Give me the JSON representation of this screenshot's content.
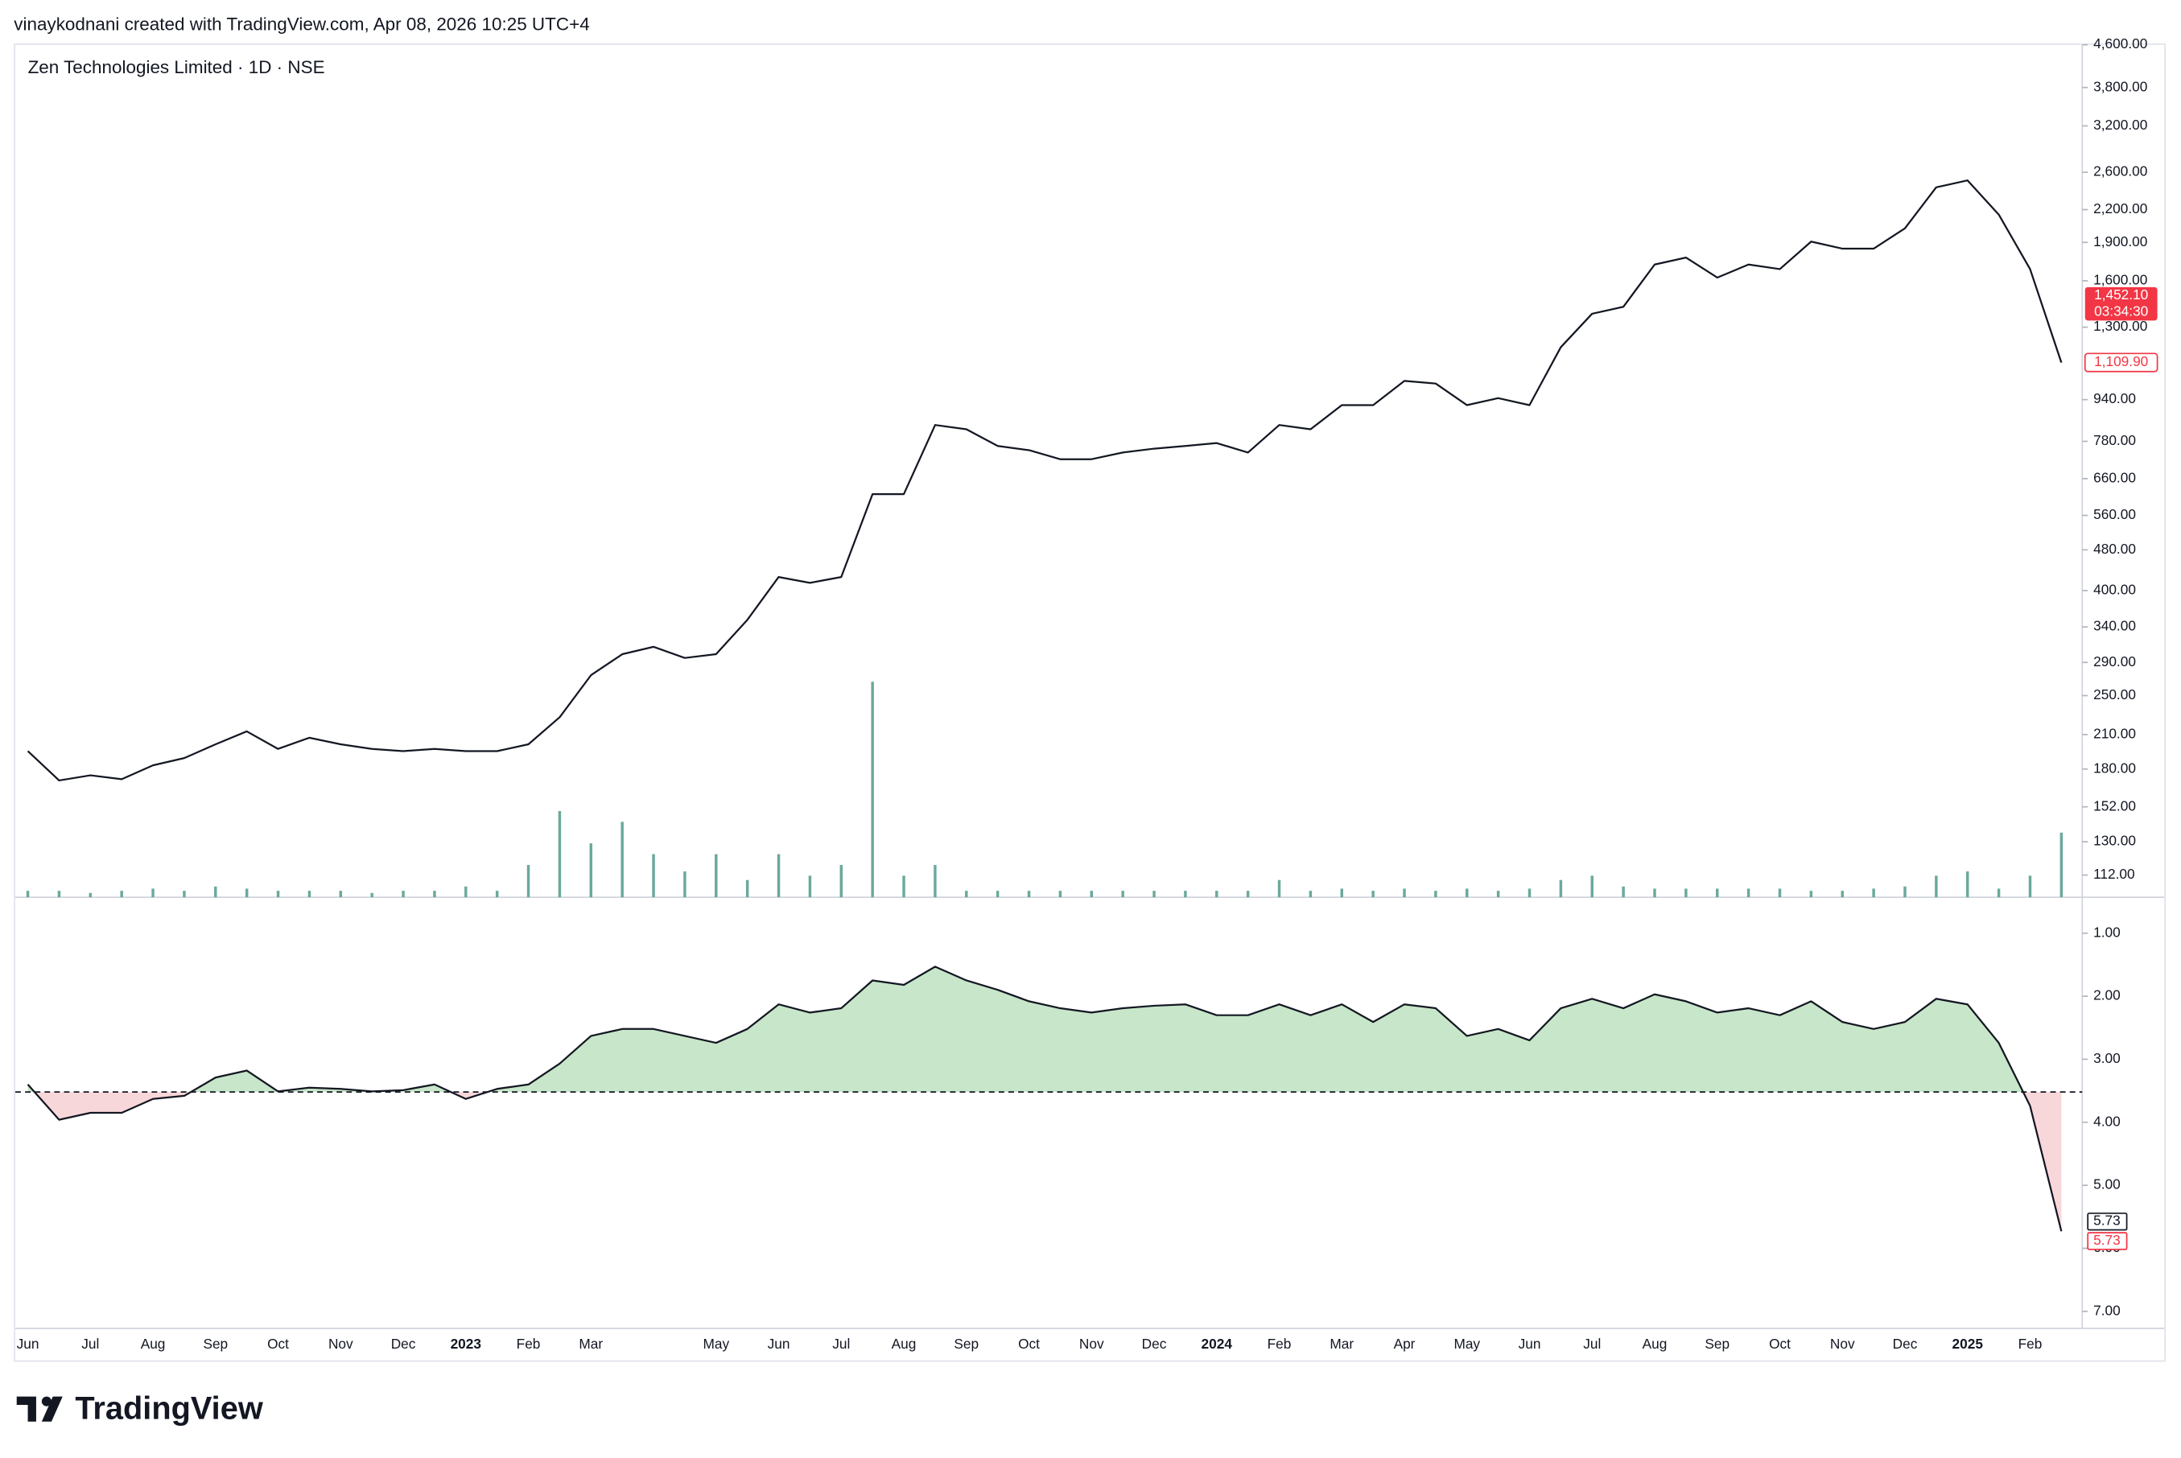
{
  "header": {
    "attribution": "vinaykodnani created with TradingView.com, Apr 08, 2026 10:25 UTC+4"
  },
  "footer": {
    "logo_text": "TradingView"
  },
  "chart_data": [
    {
      "type": "line",
      "title": "Zen Technologies Limited · 1D · NSE",
      "categories": [
        "Jun",
        null,
        "Jul",
        null,
        "Aug",
        null,
        "Sep",
        null,
        "Oct",
        null,
        "Nov",
        null,
        "Dec",
        null,
        "2023",
        null,
        "Feb",
        null,
        "Mar",
        null,
        null,
        null,
        "May",
        null,
        "Jun",
        null,
        "Jul",
        null,
        "Aug",
        null,
        "Sep",
        null,
        "Oct",
        null,
        "Nov",
        null,
        "Dec",
        null,
        "2024",
        null,
        "Feb",
        null,
        "Mar",
        null,
        "Apr",
        null,
        "May",
        null,
        "Jun",
        null,
        "Jul",
        null,
        "Aug",
        null,
        "Sep",
        null,
        "Oct",
        null,
        "Nov",
        null,
        "Dec",
        null,
        "2025",
        null,
        "Feb",
        null
      ],
      "bold_categories": [
        "2023",
        "2024",
        "2025"
      ],
      "series": [
        {
          "color": "#131722",
          "values": [
            195,
            171,
            175,
            172,
            183,
            189,
            201,
            213,
            197,
            207,
            201,
            197,
            195,
            197,
            195,
            195,
            201,
            227,
            274,
            301,
            311,
            296,
            301,
            351,
            425,
            414,
            425,
            616,
            616,
            839,
            823,
            764,
            750,
            720,
            720,
            742,
            755,
            764,
            774,
            742,
            839,
            823,
            917,
            917,
            1022,
            1010,
            917,
            946,
            917,
            1188,
            1381,
            1424,
            1721,
            1775,
            1623,
            1721,
            1686,
            1907,
            1847,
            1847,
            2023,
            2431,
            2508,
            2152,
            1686,
            1110
          ]
        }
      ],
      "volume": {
        "color": "#6aa99b",
        "values": [
          3,
          3,
          2,
          3,
          4,
          3,
          5,
          4,
          3,
          3,
          3,
          2,
          3,
          3,
          5,
          3,
          15,
          40,
          25,
          35,
          20,
          12,
          20,
          8,
          20,
          10,
          15,
          100,
          10,
          15,
          3,
          3,
          3,
          3,
          3,
          3,
          3,
          3,
          3,
          3,
          8,
          3,
          4,
          3,
          4,
          3,
          4,
          3,
          4,
          8,
          10,
          5,
          4,
          4,
          4,
          4,
          4,
          3,
          3,
          4,
          5,
          10,
          12,
          4,
          10,
          30
        ]
      },
      "log_scale": true,
      "ylim": [
        101.4,
        4600
      ],
      "yticks": [
        {
          "value": 112,
          "label": "112.00"
        },
        {
          "value": 130,
          "label": "130.00"
        },
        {
          "value": 152,
          "label": "152.00"
        },
        {
          "value": 180,
          "label": "180.00"
        },
        {
          "value": 210,
          "label": "210.00"
        },
        {
          "value": 250,
          "label": "250.00"
        },
        {
          "value": 290,
          "label": "290.00"
        },
        {
          "value": 340,
          "label": "340.00"
        },
        {
          "value": 400,
          "label": "400.00"
        },
        {
          "value": 480,
          "label": "480.00"
        },
        {
          "value": 560,
          "label": "560.00"
        },
        {
          "value": 660,
          "label": "660.00"
        },
        {
          "value": 780,
          "label": "780.00"
        },
        {
          "value": 940,
          "label": "940.00"
        },
        {
          "value": 1300,
          "label": "1,300.00"
        },
        {
          "value": 1600,
          "label": "1,600.00"
        },
        {
          "value": 1900,
          "label": "1,900.00"
        },
        {
          "value": 2200,
          "label": "2,200.00"
        },
        {
          "value": 2600,
          "label": "2,600.00"
        },
        {
          "value": 3200,
          "label": "3,200.00"
        },
        {
          "value": 3800,
          "label": "3,800.00"
        },
        {
          "value": 4600,
          "label": "4,600.00"
        }
      ],
      "price_labels": [
        {
          "value": 1452.1,
          "label": "1,452.10",
          "countdown": "03:34:30",
          "style": "filled",
          "color": "#f23645"
        },
        {
          "value": 1109.9,
          "label": "1,109.90",
          "style": "outline",
          "color": "#f23645"
        }
      ]
    },
    {
      "type": "area",
      "series": [
        {
          "color": "#131722",
          "values": [
            3.4,
            3.96,
            3.85,
            3.85,
            3.63,
            3.58,
            3.29,
            3.18,
            3.51,
            3.45,
            3.47,
            3.51,
            3.49,
            3.4,
            3.63,
            3.47,
            3.4,
            3.07,
            2.63,
            2.52,
            2.52,
            2.63,
            2.74,
            2.52,
            2.13,
            2.26,
            2.19,
            1.75,
            1.82,
            1.53,
            1.75,
            1.9,
            2.08,
            2.19,
            2.26,
            2.19,
            2.15,
            2.13,
            2.3,
            2.3,
            2.13,
            2.3,
            2.13,
            2.41,
            2.13,
            2.19,
            2.63,
            2.52,
            2.7,
            2.19,
            2.04,
            2.19,
            1.97,
            2.08,
            2.26,
            2.19,
            2.3,
            2.08,
            2.41,
            2.52,
            2.41,
            2.04,
            2.13,
            2.74,
            3.74,
            5.73
          ]
        }
      ],
      "baseline": 3.52,
      "above_color": "#c8e6c9",
      "below_color": "#f8d7da",
      "inverted": true,
      "ylim": [
        0.43,
        7.27
      ],
      "yticks": [
        {
          "value": 1,
          "label": "1.00"
        },
        {
          "value": 2,
          "label": "2.00"
        },
        {
          "value": 3,
          "label": "3.00"
        },
        {
          "value": 4,
          "label": "4.00"
        },
        {
          "value": 5,
          "label": "5.00"
        },
        {
          "value": 6,
          "label": "6.00"
        },
        {
          "value": 7,
          "label": "7.00"
        }
      ],
      "last_labels": [
        {
          "value": 5.73,
          "label": "5.73",
          "color": "#131722"
        },
        {
          "value": 5.73,
          "label": "5.73",
          "color": "#f23645"
        }
      ]
    }
  ]
}
